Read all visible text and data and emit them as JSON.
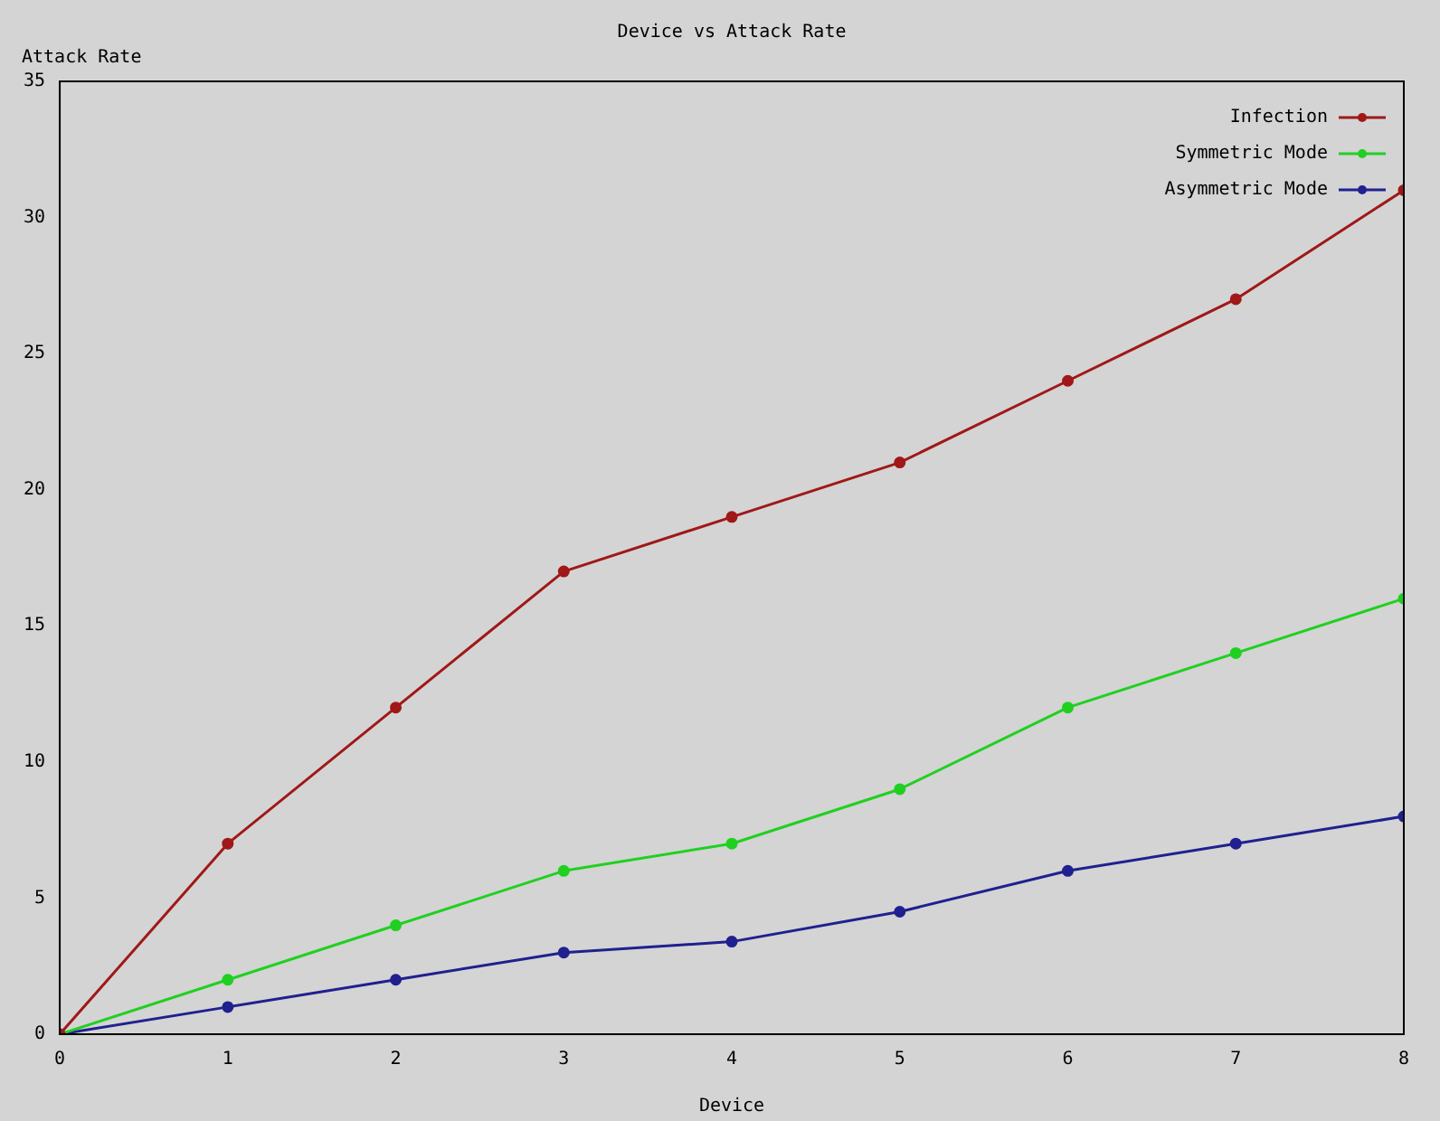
{
  "chart_data": {
    "type": "line",
    "title": "Device vs Attack Rate",
    "xlabel": "Device",
    "ylabel": "Attack Rate",
    "x": [
      0,
      1,
      2,
      3,
      4,
      5,
      6,
      7,
      8
    ],
    "series": [
      {
        "name": "Infection",
        "color": "#a01818",
        "values": [
          0,
          7,
          12,
          17,
          19,
          21,
          24,
          27,
          31
        ]
      },
      {
        "name": "Symmetric Mode",
        "color": "#20d020",
        "values": [
          0,
          2,
          4,
          6,
          7,
          9,
          12,
          14,
          16
        ]
      },
      {
        "name": "Asymmetric Mode",
        "color": "#202090",
        "values": [
          0,
          1,
          2,
          3,
          3.4,
          4.5,
          6,
          7,
          8
        ]
      }
    ],
    "xlim": [
      0,
      8
    ],
    "xticks": [
      0,
      1,
      2,
      3,
      4,
      5,
      6,
      7,
      8
    ],
    "ylim": [
      0,
      35
    ],
    "yticks": [
      0,
      5,
      10,
      15,
      20,
      25,
      30,
      35
    ],
    "grid": false,
    "legend": "top right",
    "marker": "circle",
    "line_style": "solid"
  }
}
